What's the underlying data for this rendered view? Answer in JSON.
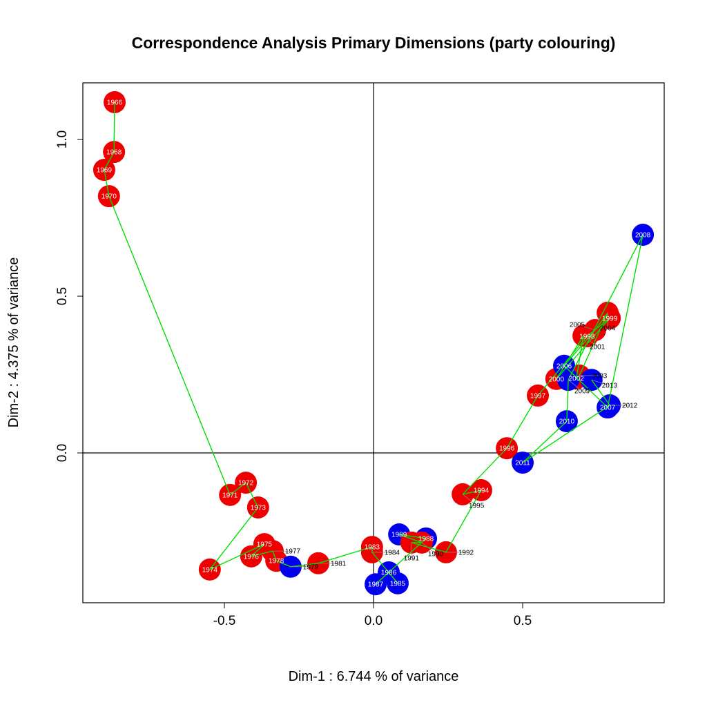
{
  "chart_data": {
    "type": "scatter",
    "title": "Correspondence Analysis Primary Dimensions (party colouring)",
    "xlabel": "Dim-1 :  6.744 % of variance",
    "ylabel": "Dim-2 :  4.375 % of variance",
    "xlim": [
      -0.975,
      0.975
    ],
    "ylim": [
      -0.48,
      1.18
    ],
    "xticks": [
      -0.5,
      0.0,
      0.5
    ],
    "xtick_labels": [
      "-0.5",
      "0.0",
      "0.5"
    ],
    "yticks": [
      0.0,
      0.5,
      1.0
    ],
    "ytick_labels": [
      "0.0",
      "0.5",
      "1.0"
    ],
    "reference_lines": {
      "x": 0,
      "y": 0
    },
    "path_color": "#00e000",
    "party_colors": {
      "red": "#ee0000",
      "blue": "#0000ee"
    },
    "points": [
      {
        "label": "1966",
        "x": -0.868,
        "y": 1.119,
        "party": "red"
      },
      {
        "label": "1968",
        "x": -0.87,
        "y": 0.96,
        "party": "red"
      },
      {
        "label": "1969",
        "x": -0.903,
        "y": 0.903,
        "party": "red"
      },
      {
        "label": "1970",
        "x": -0.887,
        "y": 0.819,
        "party": "red"
      },
      {
        "label": "1971",
        "x": -0.481,
        "y": -0.134,
        "party": "red"
      },
      {
        "label": "1972",
        "x": -0.428,
        "y": -0.095,
        "party": "red"
      },
      {
        "label": "1973",
        "x": -0.387,
        "y": -0.174,
        "party": "red"
      },
      {
        "label": "1974",
        "x": -0.549,
        "y": -0.372,
        "party": "red"
      },
      {
        "label": "1975",
        "x": -0.366,
        "y": -0.291,
        "party": "red"
      },
      {
        "label": "1976",
        "x": -0.41,
        "y": -0.33,
        "party": "red"
      },
      {
        "label": "1977",
        "x": -0.338,
        "y": -0.313,
        "party": "red"
      },
      {
        "label": "1978",
        "x": -0.326,
        "y": -0.344,
        "party": "red"
      },
      {
        "label": "1979",
        "x": -0.278,
        "y": -0.363,
        "party": "blue"
      },
      {
        "label": "1981",
        "x": -0.185,
        "y": -0.352,
        "party": "red"
      },
      {
        "label": "1983",
        "x": -0.005,
        "y": -0.3,
        "party": "red"
      },
      {
        "label": "1984",
        "x": -0.005,
        "y": -0.317,
        "party": "red"
      },
      {
        "label": "1985",
        "x": 0.081,
        "y": -0.416,
        "party": "blue"
      },
      {
        "label": "1986",
        "x": 0.051,
        "y": -0.381,
        "party": "blue"
      },
      {
        "label": "1987",
        "x": 0.007,
        "y": -0.419,
        "party": "blue"
      },
      {
        "label": "1988",
        "x": 0.176,
        "y": -0.273,
        "party": "blue"
      },
      {
        "label": "1989",
        "x": 0.086,
        "y": -0.26,
        "party": "blue"
      },
      {
        "label": "1990",
        "x": 0.162,
        "y": -0.286,
        "party": "red"
      },
      {
        "label": "1991",
        "x": 0.127,
        "y": -0.286,
        "party": "red"
      },
      {
        "label": "1992",
        "x": 0.243,
        "y": -0.317,
        "party": "red"
      },
      {
        "label": "1994",
        "x": 0.361,
        "y": -0.119,
        "party": "red"
      },
      {
        "label": "1995",
        "x": 0.299,
        "y": -0.132,
        "party": "red"
      },
      {
        "label": "1996",
        "x": 0.447,
        "y": 0.015,
        "party": "red"
      },
      {
        "label": "1997",
        "x": 0.551,
        "y": 0.183,
        "party": "red"
      },
      {
        "label": "1998",
        "x": 0.716,
        "y": 0.372,
        "party": "red"
      },
      {
        "label": "1999",
        "x": 0.792,
        "y": 0.43,
        "party": "red"
      },
      {
        "label": "2000",
        "x": 0.613,
        "y": 0.236,
        "party": "red"
      },
      {
        "label": "2001",
        "x": 0.704,
        "y": 0.374,
        "party": "red"
      },
      {
        "label": "2002",
        "x": 0.68,
        "y": 0.238,
        "party": "red"
      },
      {
        "label": "2003",
        "x": 0.69,
        "y": 0.247,
        "party": "red"
      },
      {
        "label": "2004",
        "x": 0.785,
        "y": 0.447,
        "party": "red"
      },
      {
        "label": "2005",
        "x": 0.743,
        "y": 0.392,
        "party": "red"
      },
      {
        "label": "2006",
        "x": 0.639,
        "y": 0.278,
        "party": "blue"
      },
      {
        "label": "2007",
        "x": 0.785,
        "y": 0.145,
        "party": "blue"
      },
      {
        "label": "2008",
        "x": 0.903,
        "y": 0.696,
        "party": "blue"
      },
      {
        "label": "2009",
        "x": 0.653,
        "y": 0.233,
        "party": "blue"
      },
      {
        "label": "2010",
        "x": 0.648,
        "y": 0.101,
        "party": "blue"
      },
      {
        "label": "2011",
        "x": 0.5,
        "y": -0.031,
        "party": "blue"
      },
      {
        "label": "2012",
        "x": 0.792,
        "y": 0.152,
        "party": "blue"
      },
      {
        "label": "2013",
        "x": 0.731,
        "y": 0.233,
        "party": "blue"
      }
    ]
  }
}
